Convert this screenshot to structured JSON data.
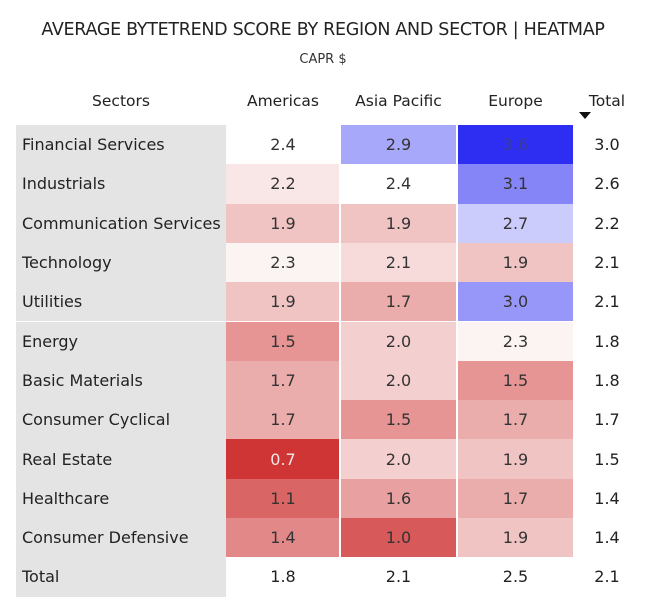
{
  "chart_data": {
    "type": "heatmap",
    "title": "AVERAGE BYTETREND SCORE BY REGION AND SECTOR | HEATMAP",
    "subtitle": "CAPR $",
    "row_header": "Sectors",
    "columns": [
      "Americas",
      "Asia Pacific",
      "Europe"
    ],
    "total_label": "Total",
    "sort": {
      "column": "Total",
      "direction": "descending"
    },
    "rows": [
      {
        "label": "Financial Services",
        "values": [
          "2.4",
          "2.9",
          "3.6"
        ],
        "total": "3.0"
      },
      {
        "label": "Industrials",
        "values": [
          "2.2",
          "2.4",
          "3.1"
        ],
        "total": "2.6"
      },
      {
        "label": "Communication Services",
        "values": [
          "1.9",
          "1.9",
          "2.7"
        ],
        "total": "2.2"
      },
      {
        "label": "Technology",
        "values": [
          "2.3",
          "2.1",
          "1.9"
        ],
        "total": "2.1"
      },
      {
        "label": "Utilities",
        "values": [
          "1.9",
          "1.7",
          "3.0"
        ],
        "total": "2.1"
      },
      {
        "label": "Energy",
        "values": [
          "1.5",
          "2.0",
          "2.3"
        ],
        "total": "1.8"
      },
      {
        "label": "Basic Materials",
        "values": [
          "1.7",
          "2.0",
          "1.5"
        ],
        "total": "1.8"
      },
      {
        "label": "Consumer Cyclical",
        "values": [
          "1.7",
          "1.5",
          "1.7"
        ],
        "total": "1.7"
      },
      {
        "label": "Real Estate",
        "values": [
          "0.7",
          "2.0",
          "1.9"
        ],
        "total": "1.5"
      },
      {
        "label": "Healthcare",
        "values": [
          "1.1",
          "1.6",
          "1.7"
        ],
        "total": "1.4"
      },
      {
        "label": "Consumer Defensive",
        "values": [
          "1.4",
          "1.0",
          "1.9"
        ],
        "total": "1.4"
      }
    ],
    "column_totals": [
      "1.8",
      "2.1",
      "2.5"
    ],
    "grand_total": "2.1",
    "color_scale": {
      "low": "#cf3535",
      "mid": "#ffffff",
      "high": "#2e2ef2",
      "min": 0.7,
      "mid_value": 2.4,
      "max": 3.6
    }
  }
}
